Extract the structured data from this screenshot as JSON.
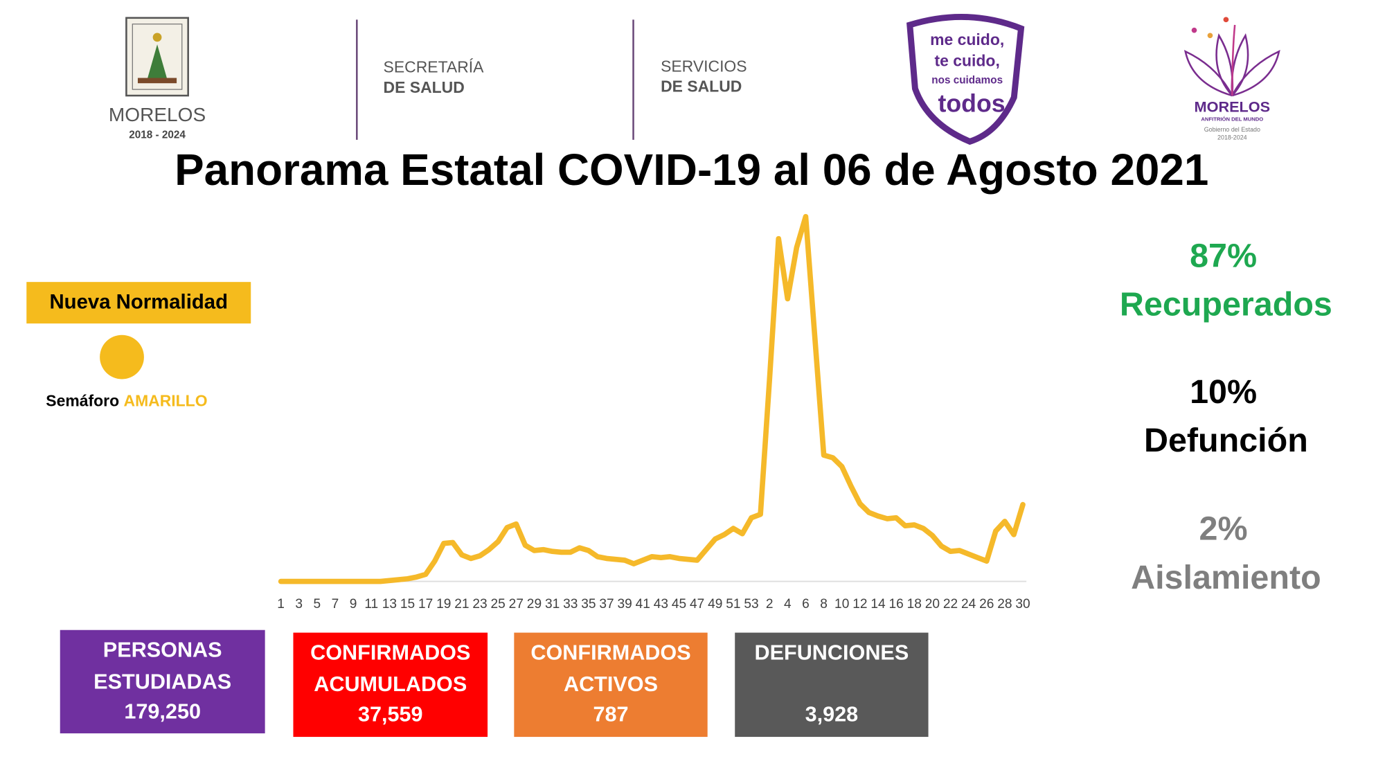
{
  "header": {
    "morelos_logo": {
      "name": "MORELOS",
      "years": "2018 - 2024"
    },
    "secretaria": {
      "line1": "SECRETARÍA",
      "line2": "DE SALUD"
    },
    "servicios": {
      "line1": "SERVICIOS",
      "line2": "DE SALUD"
    },
    "campaign": {
      "line1": "me cuido,",
      "line2": "te cuido,",
      "line3": "nos cuidamos",
      "line4": "todos"
    },
    "gobierno": {
      "name": "MORELOS",
      "tagline": "ANFITRIÓN DEL MUNDO",
      "line1": "Gobierno del Estado",
      "line2": "2018-2024"
    }
  },
  "title": "Panorama Estatal COVID-19 al 06 de Agosto 2021",
  "semaforo": {
    "badge": "Nueva Normalidad",
    "label": "Semáforo",
    "status": "AMARILLO",
    "color": "#f5bb1d"
  },
  "chart_data": {
    "type": "line",
    "color": "#f5b92a",
    "categories": [
      "1",
      null,
      "3",
      null,
      "5",
      null,
      "7",
      null,
      "9",
      null,
      "11",
      null,
      "13",
      null,
      "15",
      null,
      "17",
      null,
      "19",
      null,
      "21",
      null,
      "23",
      null,
      "25",
      null,
      "27",
      null,
      "29",
      null,
      "31",
      null,
      "33",
      null,
      "35",
      null,
      "37",
      null,
      "39",
      null,
      "41",
      null,
      "43",
      null,
      "45",
      null,
      "47",
      null,
      "49",
      null,
      "51",
      null,
      "53",
      null,
      "2",
      null,
      "4",
      null,
      "6",
      null,
      "8",
      null,
      "10",
      null,
      "12",
      null,
      "14",
      null,
      "16",
      null,
      "18",
      null,
      "20",
      null,
      "22",
      null,
      "24",
      null,
      "26",
      null,
      "28",
      null,
      "30"
    ],
    "values": [
      0,
      0,
      0,
      0,
      0,
      0,
      0,
      0,
      0,
      0,
      0,
      0,
      6,
      12,
      18,
      30,
      48,
      138,
      258,
      264,
      180,
      156,
      174,
      216,
      270,
      366,
      390,
      246,
      210,
      216,
      204,
      198,
      198,
      228,
      210,
      168,
      156,
      150,
      144,
      120,
      144,
      168,
      162,
      168,
      156,
      150,
      144,
      216,
      288,
      318,
      360,
      324,
      432,
      456,
      1368,
      2328,
      1920,
      2268,
      2478,
      1668,
      858,
      840,
      780,
      648,
      528,
      468,
      444,
      426,
      432,
      378,
      384,
      360,
      312,
      240,
      204,
      210,
      186,
      162,
      138,
      342,
      408,
      318,
      522
    ],
    "ylim": [
      0,
      2500
    ]
  },
  "stats": [
    {
      "value": "87%",
      "label": "Recuperados",
      "color": "#1ea850"
    },
    {
      "value": "10%",
      "label": "Defunción",
      "color": "#000000"
    },
    {
      "value": "2%",
      "label": "Aislamiento",
      "color": "#7f7f7f"
    }
  ],
  "boxes": [
    {
      "lines": [
        "PERSONAS",
        "ESTUDIADAS"
      ],
      "value": "179,250",
      "color": "#7030a0"
    },
    {
      "lines": [
        "CONFIRMADOS",
        "ACUMULADOS"
      ],
      "value": "37,559",
      "color": "#ff0000"
    },
    {
      "lines": [
        "CONFIRMADOS",
        "ACTIVOS"
      ],
      "value": "787",
      "color": "#ed7d31"
    },
    {
      "lines": [
        "DEFUNCIONES"
      ],
      "value": "3,928",
      "color": "#595959"
    }
  ]
}
